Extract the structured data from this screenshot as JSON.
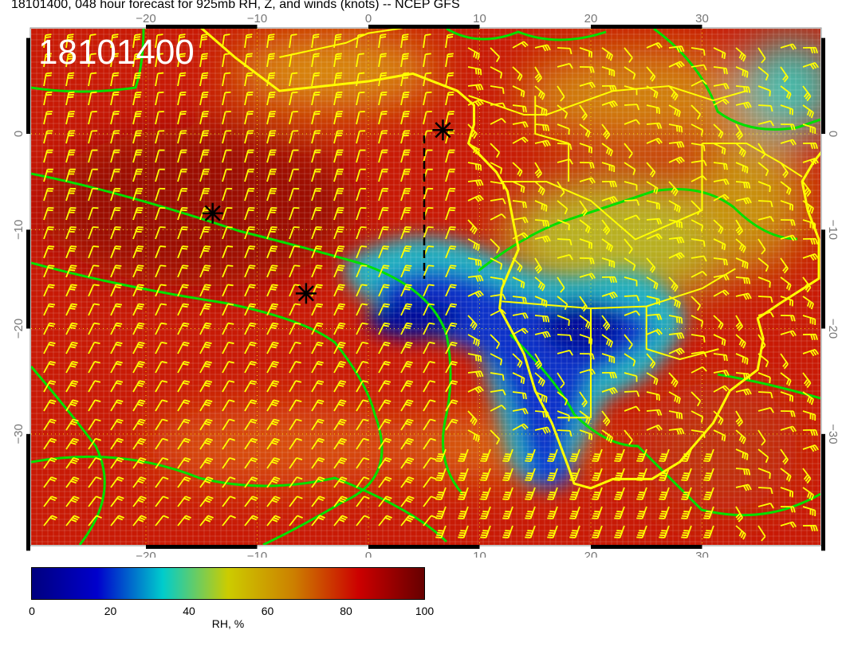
{
  "title": "18101400, 048 hour forecast for 925mb RH, Z, and winds (knots) -- NCEP GFS",
  "stamp": "18101400",
  "axes": {
    "lon_ticks": [
      "−20",
      "−10",
      "0",
      "10",
      "20",
      "30"
    ],
    "lon_values": [
      -20,
      -10,
      0,
      10,
      20,
      30
    ],
    "lat_ticks": [
      "0",
      "−10",
      "−20",
      "−30"
    ],
    "lat_values": [
      0,
      -10,
      -20,
      -30
    ],
    "lon_range": [
      -30,
      41
    ],
    "lat_range": [
      -40,
      11
    ]
  },
  "markers": [
    {
      "type": "star",
      "lon": 6.7,
      "lat": 0.4
    },
    {
      "type": "star",
      "lon": -14,
      "lat": -8.3
    },
    {
      "type": "star",
      "lon": -5.6,
      "lat": -16.5
    }
  ],
  "colorbar": {
    "ticks": [
      "0",
      "20",
      "40",
      "60",
      "80",
      "100"
    ],
    "label": "RH, %",
    "stops": [
      "#00007f",
      "#0000cc",
      "#00cccc",
      "#cccc00",
      "#cc8000",
      "#cc0000",
      "#660000"
    ]
  },
  "colors": {
    "coast": "#ffff00",
    "contour": "#00e000",
    "barb": "#ffff00"
  }
}
